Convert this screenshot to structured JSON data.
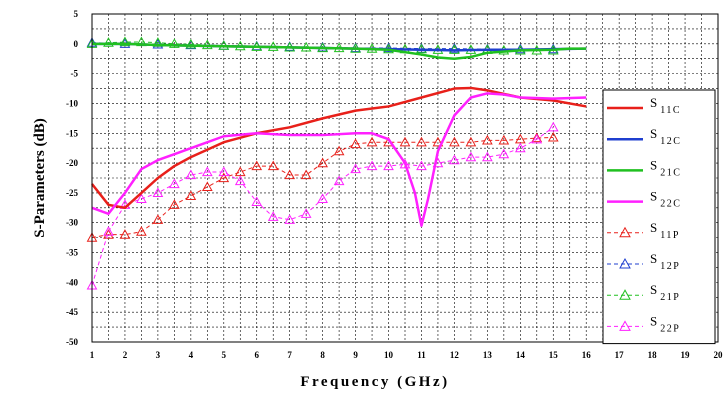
{
  "chart_data": {
    "type": "line",
    "xlabel": "Frequency (GHz)",
    "ylabel": "S-Parameters (dB)",
    "xlim": [
      1,
      20
    ],
    "ylim": [
      -50,
      5
    ],
    "x_ticks": [
      1,
      2,
      3,
      4,
      5,
      6,
      7,
      8,
      9,
      10,
      11,
      12,
      13,
      14,
      15,
      16,
      17,
      18,
      19,
      20
    ],
    "y_ticks": [
      5,
      0,
      -5,
      -10,
      -15,
      -20,
      -25,
      -30,
      -35,
      -40,
      -45,
      -50
    ],
    "grid": "dashed",
    "legend_position": "right",
    "series": [
      {
        "name": "S11C",
        "label_main": "S",
        "label_sub": "11C",
        "color": "#e8201a",
        "style": "solid",
        "marker": "none",
        "x": [
          1,
          1.5,
          2,
          2.5,
          3,
          3.5,
          4,
          5,
          6,
          7,
          8,
          9,
          10,
          11,
          12,
          12.5,
          13,
          14,
          15,
          16
        ],
        "y": [
          -23.5,
          -27,
          -27.5,
          -25,
          -22.5,
          -20.5,
          -19,
          -16.5,
          -15,
          -14,
          -12.5,
          -11.2,
          -10.5,
          -9,
          -7.5,
          -7.4,
          -7.8,
          -9,
          -9.5,
          -10.5
        ]
      },
      {
        "name": "S12C",
        "label_main": "S",
        "label_sub": "12C",
        "color": "#1f3fcf",
        "style": "solid",
        "marker": "none",
        "x": [
          1,
          2,
          3,
          4,
          5,
          6,
          7,
          8,
          9,
          10,
          11,
          12,
          13,
          14,
          15,
          16
        ],
        "y": [
          0,
          0,
          -0.2,
          -0.3,
          -0.4,
          -0.5,
          -0.6,
          -0.7,
          -0.8,
          -0.9,
          -1,
          -1.1,
          -1,
          -1,
          -0.9,
          -0.8
        ]
      },
      {
        "name": "S21C",
        "label_main": "S",
        "label_sub": "21C",
        "color": "#20c020",
        "style": "solid",
        "marker": "none",
        "x": [
          1,
          2,
          3,
          4,
          5,
          6,
          7,
          8,
          9,
          10,
          11,
          11.5,
          12,
          12.5,
          13,
          14,
          15,
          15.5,
          16
        ],
        "y": [
          0,
          0,
          -0.2,
          -0.3,
          -0.4,
          -0.5,
          -0.6,
          -0.7,
          -0.8,
          -1,
          -1.8,
          -2.3,
          -2.5,
          -2.2,
          -1.5,
          -1.1,
          -1,
          -0.8,
          -0.8
        ]
      },
      {
        "name": "S22C",
        "label_main": "S",
        "label_sub": "22C",
        "color": "#ff20ff",
        "style": "solid",
        "marker": "none",
        "x": [
          1,
          1.5,
          2,
          2.5,
          3,
          3.5,
          4,
          5,
          6,
          7,
          8,
          9,
          9.5,
          10,
          10.5,
          10.8,
          11,
          11.2,
          11.5,
          12,
          12.5,
          13,
          13.5,
          14,
          15,
          16
        ],
        "y": [
          -27.5,
          -28.5,
          -25,
          -21,
          -19.5,
          -18.5,
          -17.5,
          -15.5,
          -15,
          -15.3,
          -15.3,
          -15,
          -15,
          -16,
          -20,
          -25,
          -30.5,
          -26,
          -18,
          -12,
          -9,
          -8.3,
          -8.5,
          -9,
          -9.2,
          -9
        ]
      },
      {
        "name": "S11P",
        "label_main": "S",
        "label_sub": "11P",
        "color": "#e8201a",
        "style": "dashed",
        "marker": "triangle",
        "x": [
          1,
          1.5,
          2,
          2.5,
          3,
          3.5,
          4,
          4.5,
          5,
          5.5,
          6,
          6.5,
          7,
          7.5,
          8,
          8.5,
          9,
          9.5,
          10,
          10.5,
          11,
          11.5,
          12,
          12.5,
          13,
          13.5,
          14,
          14.5,
          15
        ],
        "y": [
          -32.5,
          -32,
          -32,
          -31.5,
          -29.5,
          -27,
          -25.5,
          -24,
          -22.5,
          -21.5,
          -20.5,
          -20.5,
          -22,
          -22,
          -20,
          -18,
          -16.8,
          -16.5,
          -16.5,
          -16.5,
          -16.5,
          -16.5,
          -16.5,
          -16.5,
          -16.2,
          -16.2,
          -16,
          -15.8,
          -15.7
        ]
      },
      {
        "name": "S12P",
        "label_main": "S",
        "label_sub": "12P",
        "color": "#1f3fcf",
        "style": "dashed",
        "marker": "triangle",
        "x": [
          1,
          2,
          3,
          4,
          5,
          6,
          7,
          8,
          9,
          10,
          11,
          12,
          13,
          14,
          15
        ],
        "y": [
          0.2,
          0,
          -0.1,
          -0.2,
          -0.3,
          -0.4,
          -0.5,
          -0.6,
          -0.7,
          -0.7,
          -0.8,
          -0.8,
          -0.9,
          -0.9,
          -0.9
        ]
      },
      {
        "name": "S21P",
        "label_main": "S",
        "label_sub": "21P",
        "color": "#20c020",
        "style": "dashed",
        "marker": "triangle",
        "x": [
          1,
          1.5,
          2,
          2.5,
          3,
          3.5,
          4,
          4.5,
          5,
          5.5,
          6,
          6.5,
          7,
          7.5,
          8,
          8.5,
          9,
          9.5,
          10,
          10.5,
          11,
          11.5,
          12,
          12.5,
          13,
          13.5,
          14,
          14.5,
          15
        ],
        "y": [
          0,
          0.2,
          0.3,
          0.3,
          0.2,
          0,
          -0.1,
          -0.2,
          -0.3,
          -0.4,
          -0.5,
          -0.5,
          -0.6,
          -0.6,
          -0.7,
          -0.7,
          -0.8,
          -0.8,
          -0.9,
          -0.9,
          -0.9,
          -1,
          -1,
          -1,
          -1,
          -1.1,
          -1.1,
          -1.1,
          -1.1
        ]
      },
      {
        "name": "S22P",
        "label_main": "S",
        "label_sub": "22P",
        "color": "#ff20ff",
        "style": "dashed",
        "marker": "triangle",
        "x": [
          1,
          1.5,
          2,
          2.5,
          3,
          3.5,
          4,
          4.5,
          5,
          5.5,
          6,
          6.5,
          7,
          7.5,
          8,
          8.5,
          9,
          9.5,
          10,
          10.5,
          11,
          11.5,
          12,
          12.5,
          13,
          13.5,
          14,
          14.5,
          15
        ],
        "y": [
          -40.5,
          -31.5,
          -27,
          -26,
          -25,
          -23.5,
          -22,
          -21.5,
          -21.5,
          -23,
          -26.5,
          -29,
          -29.5,
          -28.5,
          -26,
          -23,
          -21,
          -20.5,
          -20.5,
          -20.2,
          -20.5,
          -20,
          -19.5,
          -19,
          -19,
          -18.5,
          -17.5,
          -16,
          -14
        ]
      }
    ]
  }
}
